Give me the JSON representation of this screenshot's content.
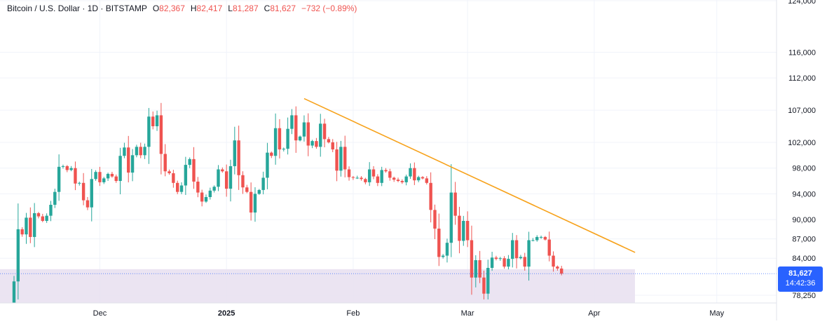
{
  "legend": {
    "symbol": "Bitcoin / U.S. Dollar · 1D · BITSTAMP",
    "o_label": "O",
    "o": "82,367",
    "h_label": "H",
    "h": "82,417",
    "l_label": "L",
    "l": "81,287",
    "c_label": "C",
    "c": "81,627",
    "change": "−732 (−0.89%)"
  },
  "last_price": {
    "value": "81,627",
    "countdown": "14:42:36"
  },
  "colors": {
    "up": "#26a69a",
    "down": "#ef5350",
    "trendline": "#f7a21b",
    "zone": "#e8dff0",
    "price_tag": "#2962ff",
    "grid": "#f0f3fa",
    "text": "#131722"
  },
  "chart_data": {
    "type": "candlestick",
    "title": "Bitcoin / U.S. Dollar · 1D · BITSTAMP",
    "ylim": [
      77500,
      124000
    ],
    "y_ticks": [
      124000,
      116000,
      112000,
      107000,
      102000,
      98000,
      94000,
      90000,
      87000,
      84000,
      78250
    ],
    "y_tick_labels": [
      "124,000",
      "116,000",
      "112,000",
      "107,000",
      "102,000",
      "98,000",
      "94,000",
      "90,000",
      "87,000",
      "84,000",
      "78,250"
    ],
    "x_ticks": [
      {
        "label": "Dec",
        "date": "2024-12-01"
      },
      {
        "label": "2025",
        "date": "2025-01-01"
      },
      {
        "label": "Feb",
        "date": "2025-02-01"
      },
      {
        "label": "Mar",
        "date": "2025-03-01"
      },
      {
        "label": "Apr",
        "date": "2025-04-01"
      },
      {
        "label": "May",
        "date": "2025-05-01"
      }
    ],
    "start_date": "2024-11-10",
    "closes": [
      80400,
      88500,
      87700,
      90300,
      87300,
      91000,
      90500,
      89800,
      90600,
      92300,
      94300,
      98200,
      98300,
      97700,
      98000,
      95600,
      95700,
      93000,
      91900,
      96300,
      97400,
      95800,
      96400,
      97100,
      96700,
      96000,
      99900,
      101200,
      97300,
      100000,
      101300,
      100000,
      101300,
      106000,
      104500,
      106200,
      100200,
      97500,
      97200,
      95700,
      94300,
      95300,
      98500,
      99400,
      95900,
      94200,
      92800,
      93500,
      94500,
      95100,
      97800,
      97500,
      94800,
      98300,
      102300,
      96900,
      95000,
      94300,
      91100,
      94000,
      94600,
      96500,
      100400,
      99900,
      104200,
      100900,
      101000,
      104100,
      106200,
      102300,
      102900,
      105100,
      101500,
      102200,
      101300,
      104900,
      102500,
      102000,
      100900,
      97600,
      101300,
      97800,
      96600,
      96500,
      96500,
      96300,
      95800,
      97800,
      96700,
      95700,
      97700,
      97500,
      96500,
      96200,
      96000,
      95800,
      96700,
      98000,
      96100,
      96600,
      96400,
      95700,
      91500,
      88600,
      84200,
      84400,
      86400,
      94200,
      90600,
      86700,
      89800,
      86800,
      81000,
      83700,
      81000,
      78500,
      82500,
      84100,
      83900,
      84000,
      82700,
      83900,
      86800,
      84000,
      84200,
      82700,
      86800,
      86800,
      87300,
      87300,
      86900,
      84400,
      82700,
      82400,
      81600
    ]
  }
}
